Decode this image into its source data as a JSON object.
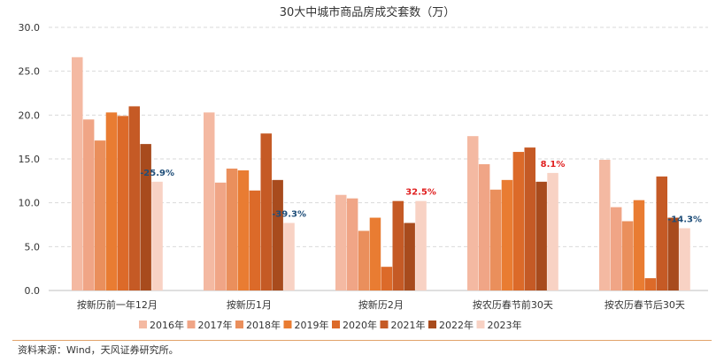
{
  "chart_data": {
    "type": "bar",
    "title": "30大中城市商品房成交套数（万）",
    "xlabel": "",
    "ylabel": "",
    "ylim": [
      0,
      30
    ],
    "yticks": [
      "0.0",
      "5.0",
      "10.0",
      "15.0",
      "20.0",
      "25.0",
      "30.0"
    ],
    "grid": true,
    "legend_position": "bottom",
    "categories": [
      "按新历前一年12月",
      "按新历1月",
      "按新历2月",
      "按农历春节前30天",
      "按农历春节后30天"
    ],
    "series": [
      {
        "name": "2016年",
        "color": "#f4b9a2",
        "values": [
          26.6,
          20.3,
          10.9,
          17.6,
          14.9
        ]
      },
      {
        "name": "2017年",
        "color": "#f0a586",
        "values": [
          19.5,
          12.3,
          10.5,
          14.4,
          9.5
        ]
      },
      {
        "name": "2018年",
        "color": "#ea8f5c",
        "values": [
          17.1,
          13.9,
          6.8,
          11.5,
          7.9
        ]
      },
      {
        "name": "2019年",
        "color": "#e97c32",
        "values": [
          20.3,
          13.7,
          8.3,
          12.6,
          10.3
        ]
      },
      {
        "name": "2020年",
        "color": "#dc6a29",
        "values": [
          19.9,
          11.4,
          2.7,
          15.8,
          1.4
        ]
      },
      {
        "name": "2021年",
        "color": "#c55a25",
        "values": [
          21.0,
          17.9,
          10.2,
          16.3,
          13.0
        ]
      },
      {
        "name": "2022年",
        "color": "#a84b1d",
        "values": [
          16.7,
          12.6,
          7.7,
          12.4,
          8.3
        ]
      },
      {
        "name": "2023年",
        "color": "#f8d2c4",
        "values": [
          12.4,
          7.7,
          10.2,
          13.4,
          7.1
        ]
      }
    ],
    "annotations": [
      {
        "text": "-25.9%",
        "category_index": 0,
        "color": "#1f4e79"
      },
      {
        "text": "-39.3%",
        "category_index": 1,
        "color": "#1f4e79"
      },
      {
        "text": "32.5%",
        "category_index": 2,
        "color": "#e02020"
      },
      {
        "text": "8.1%",
        "category_index": 3,
        "color": "#e02020"
      },
      {
        "text": "-14.3%",
        "category_index": 4,
        "color": "#1f4e79"
      }
    ]
  },
  "source_note": "资料来源：Wind，天风证券研究所。"
}
